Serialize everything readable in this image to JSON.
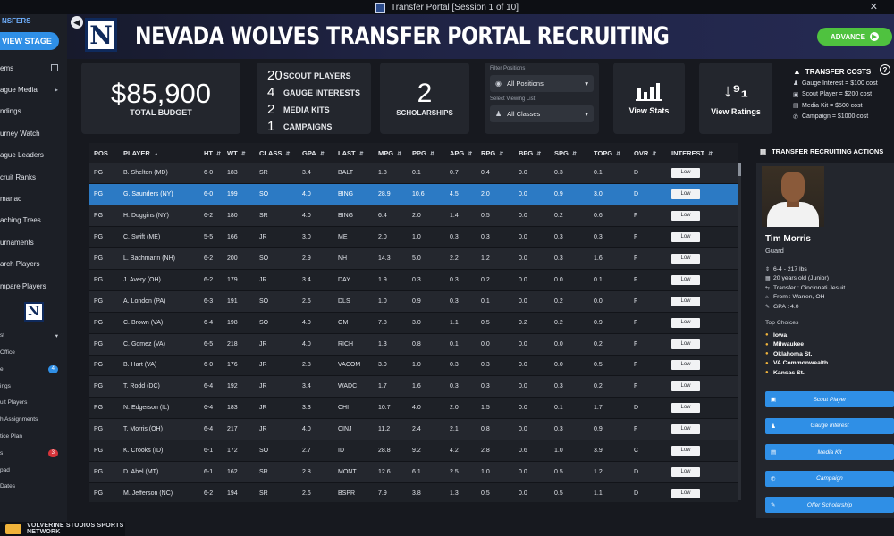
{
  "window": {
    "title": "Transfer Portal [Session 1 of 10]",
    "close": "✕"
  },
  "sidebar": {
    "header": "NSFERS",
    "stage_button": "VIEW STAGE",
    "items": [
      {
        "label": "ems",
        "marker": "box"
      },
      {
        "label": "ague Media",
        "marker": "chev"
      },
      {
        "label": "ndings",
        "marker": ""
      },
      {
        "label": "urney Watch",
        "marker": ""
      },
      {
        "label": "ague Leaders",
        "marker": ""
      },
      {
        "label": "cruit Ranks",
        "marker": ""
      },
      {
        "label": "manac",
        "marker": ""
      },
      {
        "label": "aching Trees",
        "marker": ""
      },
      {
        "label": "urnaments",
        "marker": ""
      },
      {
        "label": "arch Players",
        "marker": ""
      },
      {
        "label": "mpare Players",
        "marker": ""
      }
    ],
    "sub_items": [
      {
        "label": "st",
        "badge": "",
        "chev": "▾"
      },
      {
        "label": "Office",
        "badge": "",
        "chev": ""
      },
      {
        "label": "e",
        "badge": "4",
        "badge_color": "blue",
        "chev": ""
      },
      {
        "label": "ings",
        "badge": "",
        "chev": ""
      },
      {
        "label": "uit Players",
        "badge": "",
        "chev": ""
      },
      {
        "label": "h Assignments",
        "badge": "",
        "chev": ""
      },
      {
        "label": "tice Plan",
        "badge": "",
        "chev": ""
      },
      {
        "label": "s",
        "badge": "3",
        "badge_color": "red",
        "chev": ""
      },
      {
        "label": "pad",
        "badge": "",
        "chev": ""
      },
      {
        "label": "Dates",
        "badge": "",
        "chev": ""
      }
    ],
    "footer": "VOLVERINE STUDIOS SPORTS NETWORK"
  },
  "banner": {
    "logo_letter": "N",
    "title": "NEVADA WOLVES TRANSFER PORTAL RECRUITING",
    "advance_label": "ADVANCE"
  },
  "stats": {
    "budget_value": "$85,900",
    "budget_label": "TOTAL BUDGET",
    "resources": [
      {
        "count": "20",
        "label": "SCOUT PLAYERS"
      },
      {
        "count": "4",
        "label": "GAUGE INTERESTS"
      },
      {
        "count": "2",
        "label": "MEDIA KITS"
      },
      {
        "count": "1",
        "label": "CAMPAIGNS"
      }
    ],
    "scholarships_value": "2",
    "scholarships_label": "SCHOLARSHIPS"
  },
  "filters": {
    "positions_label": "Filter Positions",
    "positions_value": "All Positions",
    "viewing_label": "Select Viewing List",
    "viewing_value": "All Classes"
  },
  "views": {
    "stats_label": "View Stats",
    "ratings_label": "View Ratings",
    "ratings_glyph": "↓⁹₁"
  },
  "costs": {
    "title": "TRANSFER COSTS",
    "items": [
      {
        "icon": "♟",
        "text": "Gauge Interest = $100 cost"
      },
      {
        "icon": "▣",
        "text": "Scout Player = $200 cost"
      },
      {
        "icon": "▤",
        "text": "Media Kit = $500 cost"
      },
      {
        "icon": "✆",
        "text": "Campaign = $1000 cost"
      }
    ]
  },
  "table": {
    "columns": [
      "POS",
      "PLAYER",
      "HT",
      "WT",
      "CLASS",
      "GPA",
      "LAST",
      "MPG",
      "PPG",
      "APG",
      "RPG",
      "BPG",
      "SPG",
      "TOPG",
      "OVR",
      "INTEREST"
    ],
    "interest_label": "Low",
    "rows": [
      [
        "PG",
        "B. Shelton (MD)",
        "6-0",
        "183",
        "SR",
        "3.4",
        "BALT",
        "1.8",
        "0.1",
        "0.7",
        "0.4",
        "0.0",
        "0.3",
        "0.1",
        "D"
      ],
      [
        "PG",
        "G. Saunders (NY)",
        "6-0",
        "199",
        "SO",
        "4.0",
        "BING",
        "28.9",
        "10.6",
        "4.5",
        "2.0",
        "0.0",
        "0.9",
        "3.0",
        "D"
      ],
      [
        "PG",
        "H. Duggins (NY)",
        "6-2",
        "180",
        "SR",
        "4.0",
        "BING",
        "6.4",
        "2.0",
        "1.4",
        "0.5",
        "0.0",
        "0.2",
        "0.6",
        "F"
      ],
      [
        "PG",
        "C. Swift (ME)",
        "5-5",
        "166",
        "JR",
        "3.0",
        "ME",
        "2.0",
        "1.0",
        "0.3",
        "0.3",
        "0.0",
        "0.3",
        "0.3",
        "F"
      ],
      [
        "PG",
        "L. Bachmann (NH)",
        "6-2",
        "200",
        "SO",
        "2.9",
        "NH",
        "14.3",
        "5.0",
        "2.2",
        "1.2",
        "0.0",
        "0.3",
        "1.6",
        "F"
      ],
      [
        "PG",
        "J. Avery (OH)",
        "6-2",
        "179",
        "JR",
        "3.4",
        "DAY",
        "1.9",
        "0.3",
        "0.3",
        "0.2",
        "0.0",
        "0.0",
        "0.1",
        "F"
      ],
      [
        "PG",
        "A. London (PA)",
        "6-3",
        "191",
        "SO",
        "2.6",
        "DLS",
        "1.0",
        "0.9",
        "0.3",
        "0.1",
        "0.0",
        "0.2",
        "0.0",
        "F"
      ],
      [
        "PG",
        "C. Brown (VA)",
        "6-4",
        "198",
        "SO",
        "4.0",
        "GM",
        "7.8",
        "3.0",
        "1.1",
        "0.5",
        "0.2",
        "0.2",
        "0.9",
        "F"
      ],
      [
        "PG",
        "C. Gomez (VA)",
        "6-5",
        "218",
        "JR",
        "4.0",
        "RICH",
        "1.3",
        "0.8",
        "0.1",
        "0.0",
        "0.0",
        "0.0",
        "0.2",
        "F"
      ],
      [
        "PG",
        "B. Hart (VA)",
        "6-0",
        "176",
        "JR",
        "2.8",
        "VACOM",
        "3.0",
        "1.0",
        "0.3",
        "0.3",
        "0.0",
        "0.0",
        "0.5",
        "F"
      ],
      [
        "PG",
        "T. Rodd (DC)",
        "6-4",
        "192",
        "JR",
        "3.4",
        "WADC",
        "1.7",
        "1.6",
        "0.3",
        "0.3",
        "0.0",
        "0.3",
        "0.2",
        "F"
      ],
      [
        "PG",
        "N. Edgerson (IL)",
        "6-4",
        "183",
        "JR",
        "3.3",
        "CHI",
        "10.7",
        "4.0",
        "2.0",
        "1.5",
        "0.0",
        "0.1",
        "1.7",
        "D"
      ],
      [
        "PG",
        "T. Morris (OH)",
        "6-4",
        "217",
        "JR",
        "4.0",
        "CINJ",
        "11.2",
        "2.4",
        "2.1",
        "0.8",
        "0.0",
        "0.3",
        "0.9",
        "F"
      ],
      [
        "PG",
        "K. Crooks (ID)",
        "6-1",
        "172",
        "SO",
        "2.7",
        "ID",
        "28.8",
        "9.2",
        "4.2",
        "2.8",
        "0.6",
        "1.0",
        "3.9",
        "C"
      ],
      [
        "PG",
        "D. Abel (MT)",
        "6-1",
        "162",
        "SR",
        "2.8",
        "MONT",
        "12.6",
        "6.1",
        "2.5",
        "1.0",
        "0.0",
        "0.5",
        "1.2",
        "D"
      ],
      [
        "PG",
        "M. Jefferson (NC)",
        "6-2",
        "194",
        "SR",
        "2.6",
        "BSPR",
        "7.9",
        "3.8",
        "1.3",
        "0.5",
        "0.0",
        "0.5",
        "1.1",
        "D"
      ]
    ]
  },
  "panel": {
    "header": "TRANSFER RECRUITING ACTIONS",
    "player_name": "Tim Morris",
    "player_position": "Guard",
    "info": [
      {
        "icon": "⇕",
        "text": "6-4 - 217 lbs"
      },
      {
        "icon": "▦",
        "text": "20 years old (Junior)"
      },
      {
        "icon": "⇆",
        "text": "Transfer : Cincinnati Jesuit"
      },
      {
        "icon": "⌂",
        "text": "From : Warren, OH"
      },
      {
        "icon": "✎",
        "text": "GPA : 4.0"
      }
    ],
    "top_choices_title": "Top Choices",
    "top_choices": [
      "Iowa",
      "Milwaukee",
      "Oklahoma St.",
      "VA Commonwealth",
      "Kansas St."
    ],
    "actions": [
      {
        "icon": "▣",
        "label": "Scout Player"
      },
      {
        "icon": "♟",
        "label": "Gauge Interest"
      },
      {
        "icon": "▤",
        "label": "Media Kit"
      },
      {
        "icon": "✆",
        "label": "Campaign"
      },
      {
        "icon": "✎",
        "label": "Offer Scholarship"
      }
    ]
  }
}
